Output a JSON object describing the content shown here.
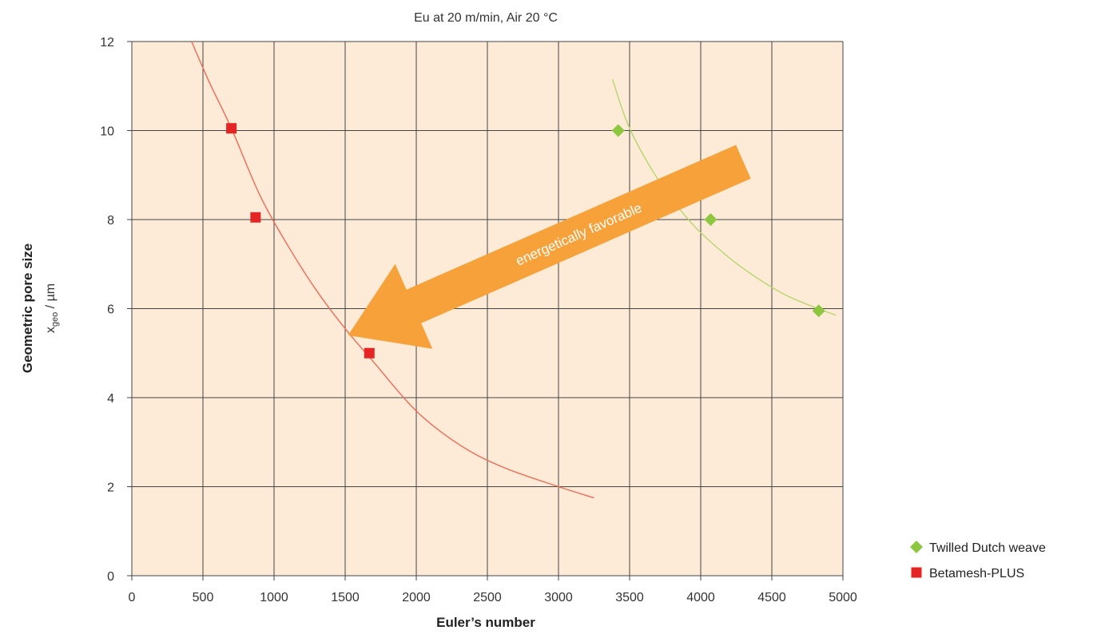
{
  "chart_data": {
    "type": "scatter",
    "title": "Eu at 20 m/min, Air 20 °C",
    "xlabel": "Euler’s number",
    "ylabel": "Geometric pore size",
    "ylabel_sub": {
      "base": "x",
      "subscript": "geo",
      "unit": " / µm"
    },
    "xlim": [
      0,
      5000
    ],
    "ylim": [
      0,
      12
    ],
    "xticks": [
      0,
      500,
      1000,
      1500,
      2000,
      2500,
      3000,
      3500,
      4000,
      4500,
      5000
    ],
    "yticks": [
      0,
      2,
      4,
      6,
      8,
      10,
      12
    ],
    "grid": true,
    "plot_background": "#fdebd7",
    "legend_position": "bottom-right",
    "series": [
      {
        "name": "Twilled Dutch weave",
        "marker": "diamond",
        "color": "#8dc63f",
        "points": [
          [
            3420,
            10
          ],
          [
            4070,
            8
          ],
          [
            4830,
            5.95
          ]
        ],
        "trend": {
          "color": "#b5d66b",
          "points": [
            [
              3380,
              11.15
            ],
            [
              3500,
              10.05
            ],
            [
              3700,
              8.9
            ],
            [
              3900,
              8.05
            ],
            [
              4070,
              7.5
            ],
            [
              4300,
              6.9
            ],
            [
              4600,
              6.3
            ],
            [
              4950,
              5.85
            ]
          ]
        }
      },
      {
        "name": "Betamesh-PLUS",
        "marker": "square",
        "color": "#e42523",
        "points": [
          [
            700,
            10.05
          ],
          [
            870,
            8.05
          ],
          [
            1670,
            5
          ]
        ],
        "trend": {
          "color": "#f06a55",
          "points": [
            [
              420,
              12
            ],
            [
              550,
              11.05
            ],
            [
              700,
              10.05
            ],
            [
              900,
              8.55
            ],
            [
              1100,
              7.4
            ],
            [
              1300,
              6.4
            ],
            [
              1500,
              5.55
            ],
            [
              1700,
              4.8
            ],
            [
              2000,
              3.7
            ],
            [
              2300,
              2.95
            ],
            [
              2600,
              2.45
            ],
            [
              3000,
              2.0
            ],
            [
              3250,
              1.75
            ]
          ]
        }
      }
    ],
    "annotation": {
      "text": "energetically favorable",
      "type": "arrow",
      "color": "#f7a13a",
      "direction": "down-left",
      "from": [
        4300,
        9.3
      ],
      "to": [
        1520,
        5.4
      ]
    }
  }
}
